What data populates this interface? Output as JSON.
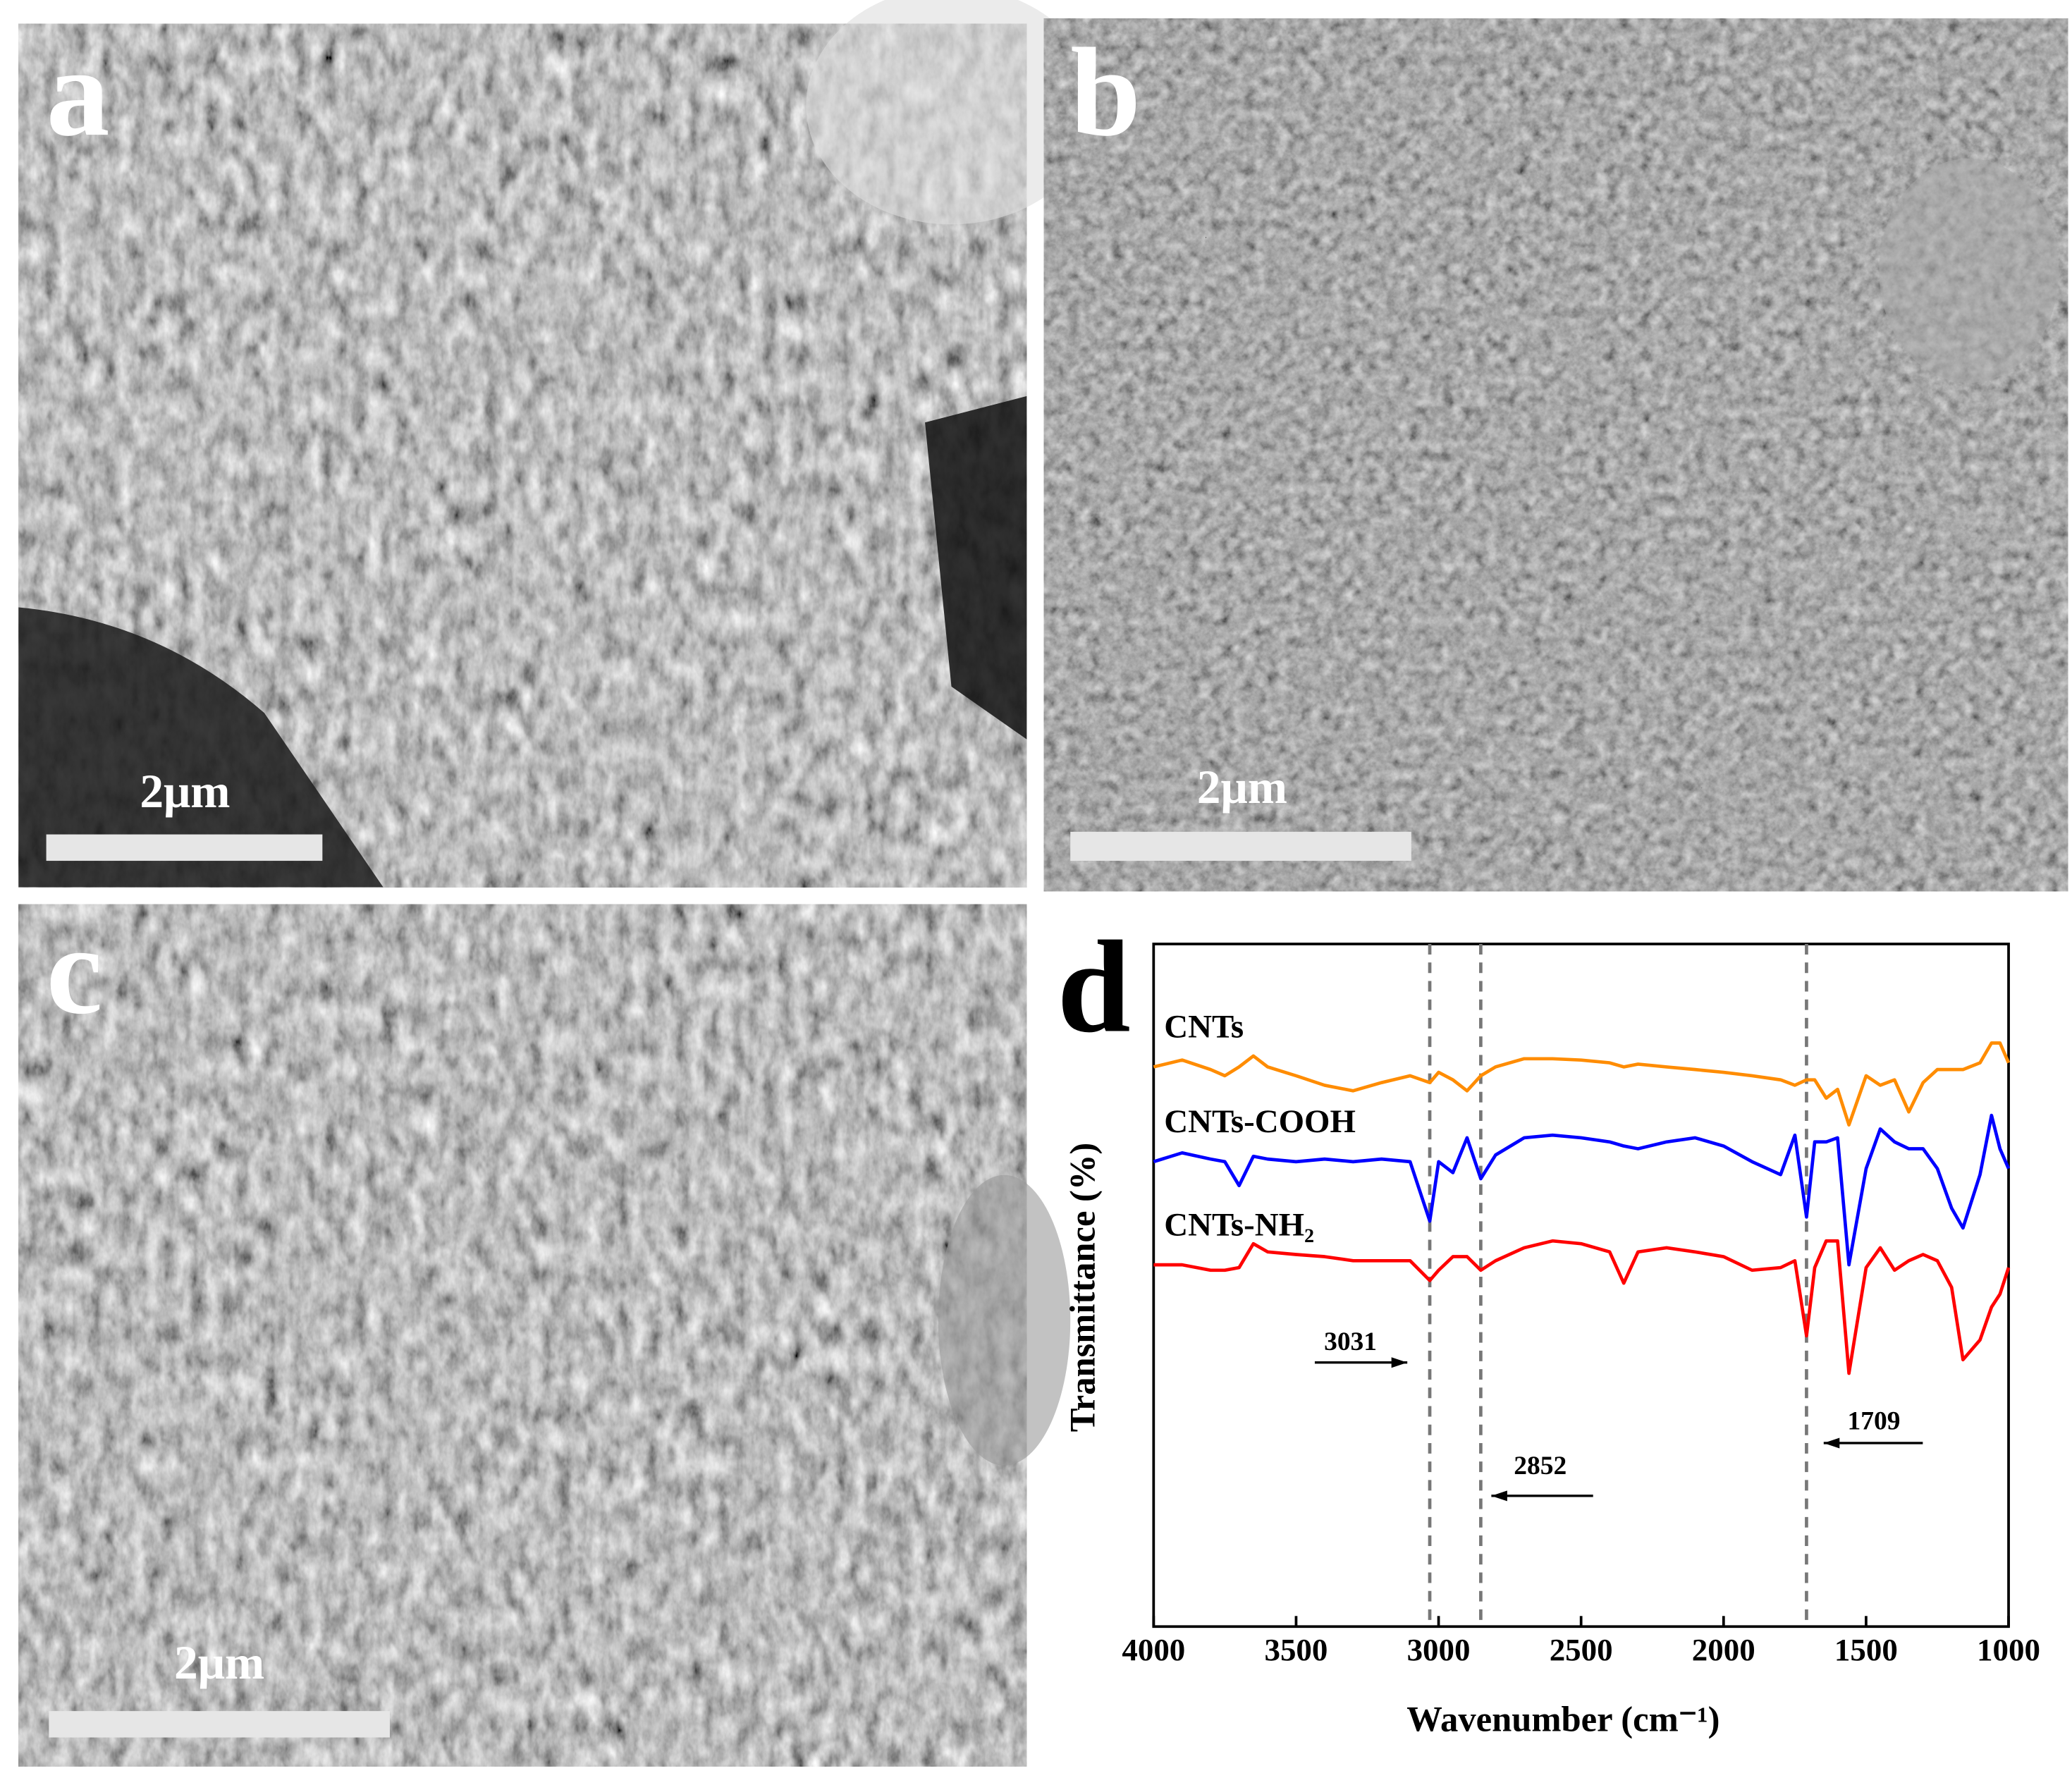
{
  "panels": [
    {
      "label": "a",
      "scale_bar": "2μm"
    },
    {
      "label": "b",
      "scale_bar": "2μm"
    },
    {
      "label": "c",
      "scale_bar": "2μm"
    }
  ],
  "chart_data": {
    "type": "line",
    "panel_label": "d",
    "xlabel": "Wavenumber (cm⁻¹)",
    "ylabel": "Transmittance (%)",
    "xlim": [
      4000,
      1000
    ],
    "xticks": [
      4000,
      3500,
      3000,
      2500,
      2000,
      1500,
      1000
    ],
    "ylim": [
      0,
      100
    ],
    "annotations": [
      3031,
      2852,
      1709
    ],
    "x": [
      4000,
      3900,
      3800,
      3750,
      3700,
      3650,
      3600,
      3500,
      3400,
      3300,
      3200,
      3100,
      3031,
      3000,
      2950,
      2900,
      2852,
      2800,
      2700,
      2600,
      2500,
      2400,
      2350,
      2300,
      2200,
      2100,
      2000,
      1900,
      1800,
      1750,
      1709,
      1680,
      1640,
      1600,
      1560,
      1500,
      1450,
      1400,
      1350,
      1300,
      1250,
      1200,
      1160,
      1100,
      1060,
      1030,
      1000
    ],
    "series": [
      {
        "name": "CNTs",
        "color": "#ff8c00",
        "values": [
          82.0,
          83.0,
          81.6,
          80.7,
          82.0,
          83.6,
          82.0,
          80.7,
          79.3,
          78.5,
          79.7,
          80.7,
          79.7,
          81.2,
          80.1,
          78.5,
          80.7,
          82.0,
          83.2,
          83.2,
          83.0,
          82.6,
          82.0,
          82.4,
          82.0,
          81.6,
          81.2,
          80.7,
          80.1,
          79.3,
          80.1,
          80.1,
          77.4,
          78.7,
          73.5,
          80.7,
          79.3,
          80.1,
          75.4,
          79.7,
          81.6,
          81.6,
          81.6,
          82.6,
          85.5,
          85.5,
          82.6
        ]
      },
      {
        "name": "CNTs-COOH",
        "color": "#0000ff",
        "values": [
          68.1,
          69.4,
          68.5,
          68.1,
          64.6,
          68.9,
          68.5,
          68.1,
          68.5,
          68.1,
          68.5,
          68.1,
          59.4,
          68.1,
          66.5,
          71.6,
          65.6,
          69.1,
          71.6,
          72.0,
          71.6,
          71.0,
          70.4,
          70.0,
          71.0,
          71.6,
          70.4,
          68.1,
          66.2,
          72.0,
          60.0,
          71.0,
          71.0,
          71.6,
          53.0,
          67.1,
          72.9,
          71.0,
          70.0,
          70.0,
          67.1,
          61.3,
          58.4,
          66.2,
          74.9,
          70.0,
          67.1
        ]
      },
      {
        "name": "CNTs-NH₂",
        "color": "#ff0000",
        "values": [
          53.0,
          53.0,
          52.2,
          52.2,
          52.6,
          56.1,
          54.9,
          54.5,
          54.2,
          53.6,
          53.6,
          53.6,
          50.7,
          52.2,
          54.2,
          54.2,
          52.2,
          53.6,
          55.5,
          56.5,
          56.1,
          54.9,
          50.3,
          54.9,
          55.5,
          54.9,
          54.2,
          52.2,
          52.6,
          53.6,
          42.6,
          52.6,
          56.5,
          56.5,
          37.1,
          52.6,
          55.5,
          52.2,
          53.6,
          54.5,
          53.6,
          49.7,
          39.1,
          42.0,
          46.8,
          48.7,
          52.6
        ]
      }
    ]
  }
}
